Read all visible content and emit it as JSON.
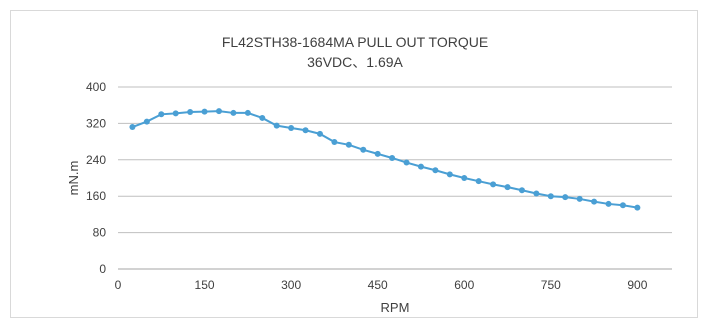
{
  "chart_data": {
    "type": "line",
    "title": "FL42STH38-1684MA  PULL OUT TORQUE",
    "subtitle": "36VDC、1.69A",
    "xlabel": "RPM",
    "ylabel": "mN.m",
    "xlim": [
      0,
      960
    ],
    "ylim": [
      0,
      400
    ],
    "xticks": [
      0,
      150,
      300,
      450,
      600,
      750,
      900
    ],
    "yticks": [
      0,
      80,
      160,
      240,
      320,
      400
    ],
    "grid": "horizontal",
    "legend": "none",
    "colors": {
      "series": "#4a9fd4",
      "grid": "#bfbfbf",
      "axis": "#a6a6a6"
    },
    "series": [
      {
        "x": [
          25,
          50,
          75,
          100,
          125,
          150,
          175,
          200,
          225,
          250,
          275,
          300,
          325,
          350,
          375,
          400,
          425,
          450,
          475,
          500,
          525,
          550,
          575,
          600,
          625,
          650,
          675,
          700,
          725,
          750,
          775,
          800,
          825,
          850,
          875,
          900
        ],
        "y": [
          312,
          324,
          340,
          342,
          345,
          346,
          347,
          343,
          343,
          332,
          315,
          310,
          305,
          297,
          279,
          273,
          262,
          253,
          244,
          234,
          225,
          217,
          208,
          200,
          193,
          186,
          180,
          173,
          166,
          160,
          158,
          154,
          148,
          143,
          140,
          135
        ]
      }
    ]
  }
}
